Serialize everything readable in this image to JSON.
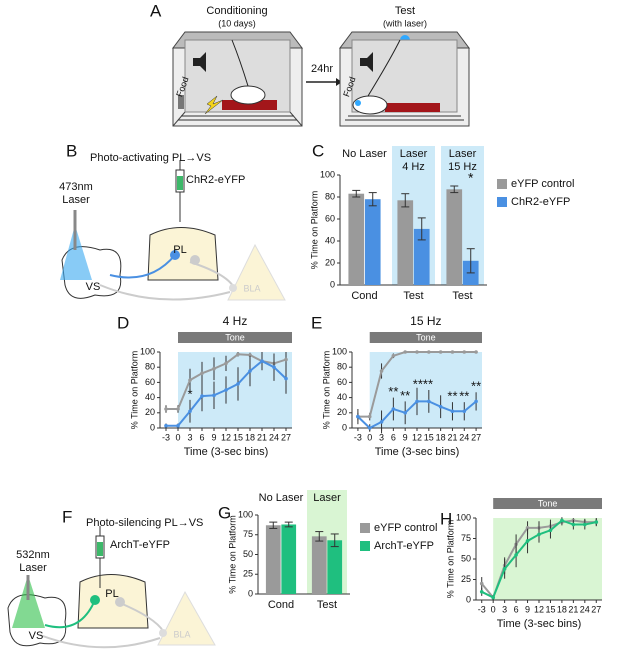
{
  "panel_labels": [
    "A",
    "B",
    "C",
    "D",
    "E",
    "F",
    "G",
    "H"
  ],
  "panel_a": {
    "left_title": "Conditioning",
    "left_subtitle": "(10 days)",
    "arrow_label": "24hr",
    "right_title": "Test",
    "right_subtitle": "(with laser)",
    "food_label": "Food"
  },
  "panel_b": {
    "title": "Photo-activating PL→VS",
    "virus": "ChR2-eYFP",
    "laser_wavelength": "473nm",
    "laser": "Laser",
    "regions": [
      "PL",
      "VS",
      "BLA"
    ]
  },
  "panel_f": {
    "title": "Photo-silencing PL→VS",
    "virus": "ArchT-eYFP",
    "laser_wavelength": "532nm",
    "laser": "Laser",
    "regions": [
      "PL",
      "VS",
      "BLA"
    ]
  },
  "chart_data": [
    {
      "type": "bar",
      "panel": "C",
      "categories": [
        "Cond",
        "Test",
        "Test"
      ],
      "group_labels": [
        [
          "No Laser"
        ],
        [
          "Laser",
          "4 Hz"
        ],
        [
          "Laser",
          "15 Hz"
        ]
      ],
      "highlight": [
        false,
        true,
        true
      ],
      "highlight_color": "#cdeaf8",
      "ylabel": "% Time on Platform",
      "ylim": [
        0,
        100
      ],
      "yticks": [
        0,
        20,
        40,
        60,
        80,
        100
      ],
      "series": [
        {
          "name": "eYFP control",
          "color": "#9a9a9a",
          "values": [
            83,
            77,
            87
          ],
          "errors": [
            3,
            6,
            3
          ]
        },
        {
          "name": "ChR2-eYFP",
          "color": "#4a90e2",
          "values": [
            78,
            51,
            22
          ],
          "errors": [
            6,
            10,
            11
          ]
        }
      ],
      "annotations": [
        {
          "category": 2,
          "series": 1,
          "text": "*"
        }
      ]
    },
    {
      "type": "line",
      "panel": "D",
      "title": "4 Hz",
      "tone_label": "Tone",
      "tone_start": 0,
      "shade_color": "#cdeaf8",
      "xlabel": "Time (3-sec bins)",
      "ylabel": "% Time on Platform",
      "x": [
        -3,
        0,
        3,
        6,
        9,
        12,
        15,
        18,
        21,
        24,
        27
      ],
      "xlim": [
        -4.5,
        28.5
      ],
      "xticks": [
        -3,
        0,
        3,
        6,
        9,
        12,
        15,
        18,
        21,
        24,
        27
      ],
      "ylim": [
        0,
        100
      ],
      "yticks": [
        0,
        20,
        40,
        60,
        80,
        100
      ],
      "series": [
        {
          "name": "eYFP control",
          "color": "#9a9a9a",
          "values": [
            25,
            25,
            63,
            72,
            78,
            85,
            97,
            96,
            88,
            85,
            90
          ],
          "errors": [
            5,
            5,
            15,
            15,
            15,
            10,
            3,
            3,
            10,
            10,
            10
          ]
        },
        {
          "name": "ChR2-eYFP",
          "color": "#4a90e2",
          "values": [
            3,
            3,
            22,
            42,
            43,
            50,
            58,
            75,
            88,
            80,
            65
          ],
          "errors": [
            3,
            3,
            15,
            20,
            18,
            18,
            22,
            20,
            12,
            18,
            20
          ]
        }
      ],
      "annotations": [
        {
          "x": 3,
          "text": "*"
        }
      ]
    },
    {
      "type": "line",
      "panel": "E",
      "title": "15 Hz",
      "tone_label": "Tone",
      "tone_start": 0,
      "shade_color": "#cdeaf8",
      "xlabel": "Time (3-sec bins)",
      "ylabel": "% Time on Platform",
      "x": [
        -3,
        0,
        3,
        6,
        9,
        12,
        15,
        18,
        21,
        24,
        27
      ],
      "xlim": [
        -4.5,
        28.5
      ],
      "xticks": [
        -3,
        0,
        3,
        6,
        9,
        12,
        15,
        18,
        21,
        24,
        27
      ],
      "ylim": [
        0,
        100
      ],
      "yticks": [
        0,
        20,
        40,
        60,
        80,
        100
      ],
      "series": [
        {
          "name": "eYFP control",
          "color": "#9a9a9a",
          "values": [
            15,
            15,
            75,
            95,
            100,
            100,
            100,
            100,
            100,
            100,
            100
          ],
          "errors": [
            5,
            5,
            10,
            3,
            0,
            0,
            0,
            0,
            0,
            0,
            0
          ]
        },
        {
          "name": "ChR2-eYFP",
          "color": "#4a90e2",
          "values": [
            15,
            0,
            8,
            25,
            20,
            35,
            35,
            28,
            22,
            22,
            35
          ],
          "errors": [
            10,
            5,
            15,
            15,
            15,
            18,
            15,
            15,
            12,
            12,
            12
          ]
        }
      ],
      "annotations": [
        {
          "x": 6,
          "text": "**"
        },
        {
          "x": 9,
          "text": "**"
        },
        {
          "x": 13.5,
          "text": "****"
        },
        {
          "x": 21,
          "text": "**"
        },
        {
          "x": 24,
          "text": "**"
        },
        {
          "x": 27,
          "text": "**"
        }
      ]
    },
    {
      "type": "bar",
      "panel": "G",
      "categories": [
        "Cond",
        "Test"
      ],
      "group_labels": [
        [
          "No Laser"
        ],
        [
          "Laser"
        ]
      ],
      "highlight": [
        false,
        true
      ],
      "highlight_color": "#d9f5d3",
      "ylabel": "% Time on Platform",
      "ylim": [
        0,
        100
      ],
      "yticks": [
        0,
        25,
        50,
        75,
        100
      ],
      "series": [
        {
          "name": "eYFP control",
          "color": "#9a9a9a",
          "values": [
            87,
            73
          ],
          "errors": [
            4,
            6
          ]
        },
        {
          "name": "ArchT-eYFP",
          "color": "#1fbf7f",
          "values": [
            88,
            68
          ],
          "errors": [
            3,
            8
          ]
        }
      ]
    },
    {
      "type": "line",
      "panel": "H",
      "tone_label": "Tone",
      "tone_start": 0,
      "shade_color": "#d9f5d3",
      "xlabel": "Time (3-sec bins)",
      "ylabel": "% Time on Platform",
      "x": [
        -3,
        0,
        3,
        6,
        9,
        12,
        15,
        18,
        21,
        24,
        27
      ],
      "xlim": [
        -4.5,
        28.5
      ],
      "xticks": [
        -3,
        0,
        3,
        6,
        9,
        12,
        15,
        18,
        21,
        24,
        27
      ],
      "ylim": [
        0,
        100
      ],
      "yticks": [
        0,
        25,
        50,
        75,
        100
      ],
      "series": [
        {
          "name": "eYFP control",
          "color": "#9a9a9a",
          "values": [
            20,
            3,
            42,
            68,
            88,
            88,
            90,
            95,
            97,
            95,
            95
          ],
          "errors": [
            8,
            3,
            10,
            12,
            8,
            8,
            8,
            4,
            3,
            4,
            4
          ]
        },
        {
          "name": "ArchT-eYFP",
          "color": "#1fbf7f",
          "values": [
            10,
            3,
            38,
            55,
            72,
            80,
            85,
            97,
            92,
            92,
            95
          ],
          "errors": [
            5,
            3,
            12,
            15,
            15,
            10,
            10,
            4,
            6,
            6,
            5
          ]
        }
      ]
    }
  ]
}
